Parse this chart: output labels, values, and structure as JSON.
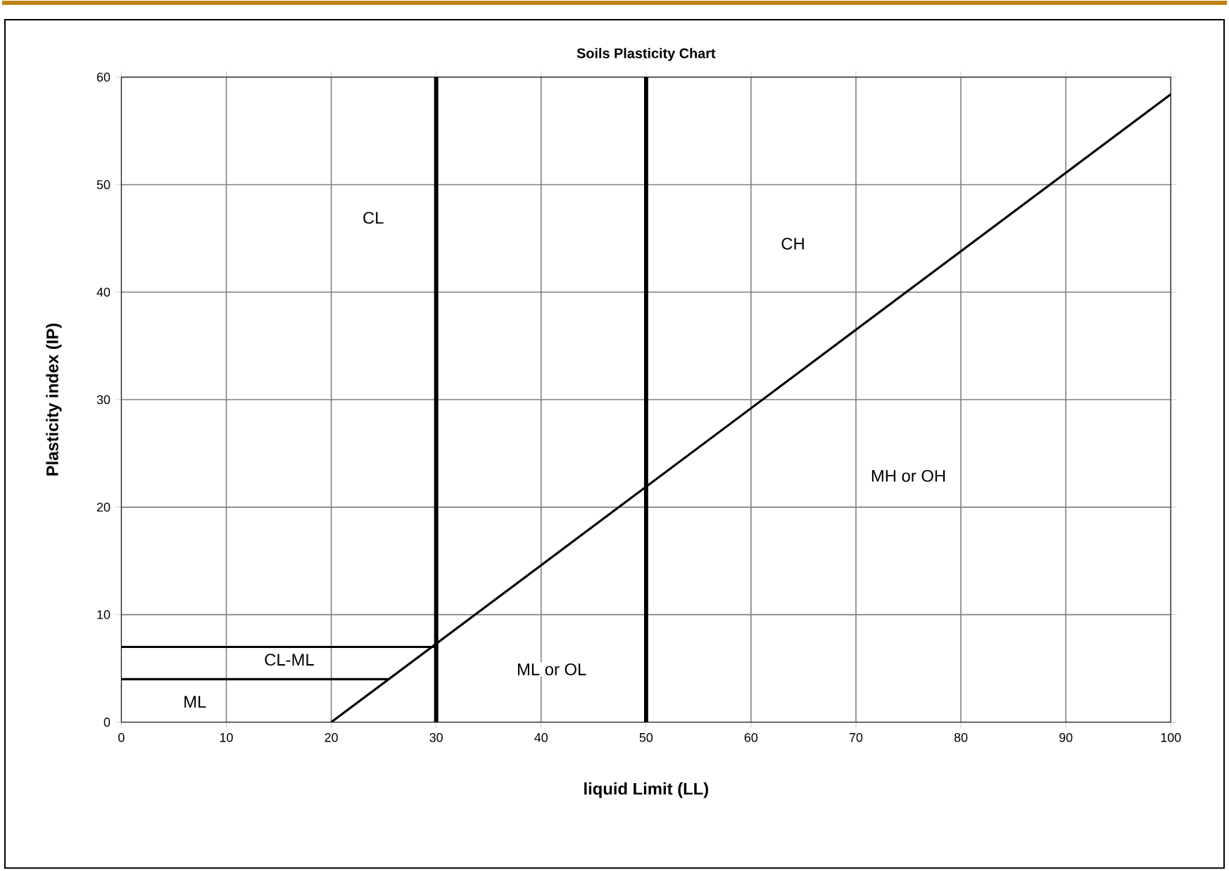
{
  "chart_data": {
    "type": "line",
    "title": "Soils Plasticity Chart",
    "xlabel": "liquid Limit (LL)",
    "ylabel": "Plasticity index (IP)",
    "xlim": [
      0,
      100
    ],
    "ylim": [
      0,
      60
    ],
    "xticks": [
      0,
      10,
      20,
      30,
      40,
      50,
      60,
      70,
      80,
      90,
      100
    ],
    "yticks": [
      0,
      10,
      20,
      30,
      40,
      50,
      60
    ],
    "grid": true,
    "marker": "none",
    "line_style": "solid",
    "series": [
      {
        "x": [
          20,
          100
        ],
        "values": [
          0,
          58.4
        ],
        "color": "#000000"
      },
      {
        "x": [
          0,
          30
        ],
        "values": [
          7,
          7
        ],
        "color": "#000000"
      },
      {
        "x": [
          0,
          25.5
        ],
        "values": [
          4,
          4
        ],
        "color": "#000000"
      }
    ],
    "ref_lines": [
      {
        "axis": "x",
        "value": 30,
        "color": "#000000"
      },
      {
        "axis": "x",
        "value": 50,
        "color": "#000000"
      }
    ],
    "annotations": [
      "CL",
      "CH",
      "MH or OH",
      "ML or OL",
      "CL-ML",
      "ML"
    ]
  }
}
